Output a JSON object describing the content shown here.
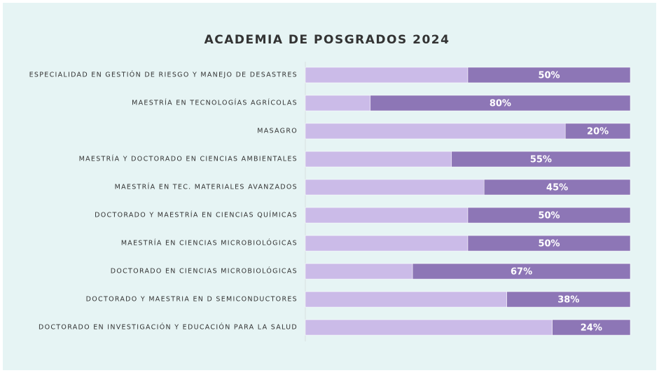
{
  "chart_data": {
    "type": "stacked_bar_horizontal",
    "title": "ACADEMIA  DE POSGRADOS  2024",
    "categories": [
      "ESPECIALIDAD EN GESTIÓN DE RIESGO Y MANEJO DE DESASTRES",
      "MAESTRÍA EN TECNOLOGÍAS AGRÍCOLAS",
      "MASAGRO",
      "MAESTRÍA Y DOCTORADO EN CIENCIAS AMBIENTALES",
      "MAESTRÍA EN TEC. MATERIALES AVANZADOS",
      "DOCTORADO Y MAESTRÍA EN CIENCIAS QUÍMICAS",
      "MAESTRÍA EN CIENCIAS MICROBIOLÓGICAS",
      "DOCTORADO EN CIENCIAS MICROBIOLÓGICAS",
      "DOCTORADO Y MAESTRIA EN D SEMICONDUCTORES",
      "DOCTORADO EN INVESTIGACIÓN Y EDUCACIÓN PARA LA SALUD"
    ],
    "series": [
      {
        "color": "#cbbbe8",
        "values": [
          50,
          20,
          80,
          45,
          55,
          50,
          50,
          33,
          62,
          76
        ]
      },
      {
        "color": "#8d76b6",
        "values": [
          50,
          80,
          20,
          55,
          45,
          50,
          50,
          67,
          38,
          24
        ],
        "value_labels": [
          "50%",
          "80%",
          "20%",
          "55%",
          "45%",
          "50%",
          "50%",
          "67%",
          "38%",
          "24%"
        ]
      }
    ],
    "xlim": [
      0,
      100
    ]
  }
}
